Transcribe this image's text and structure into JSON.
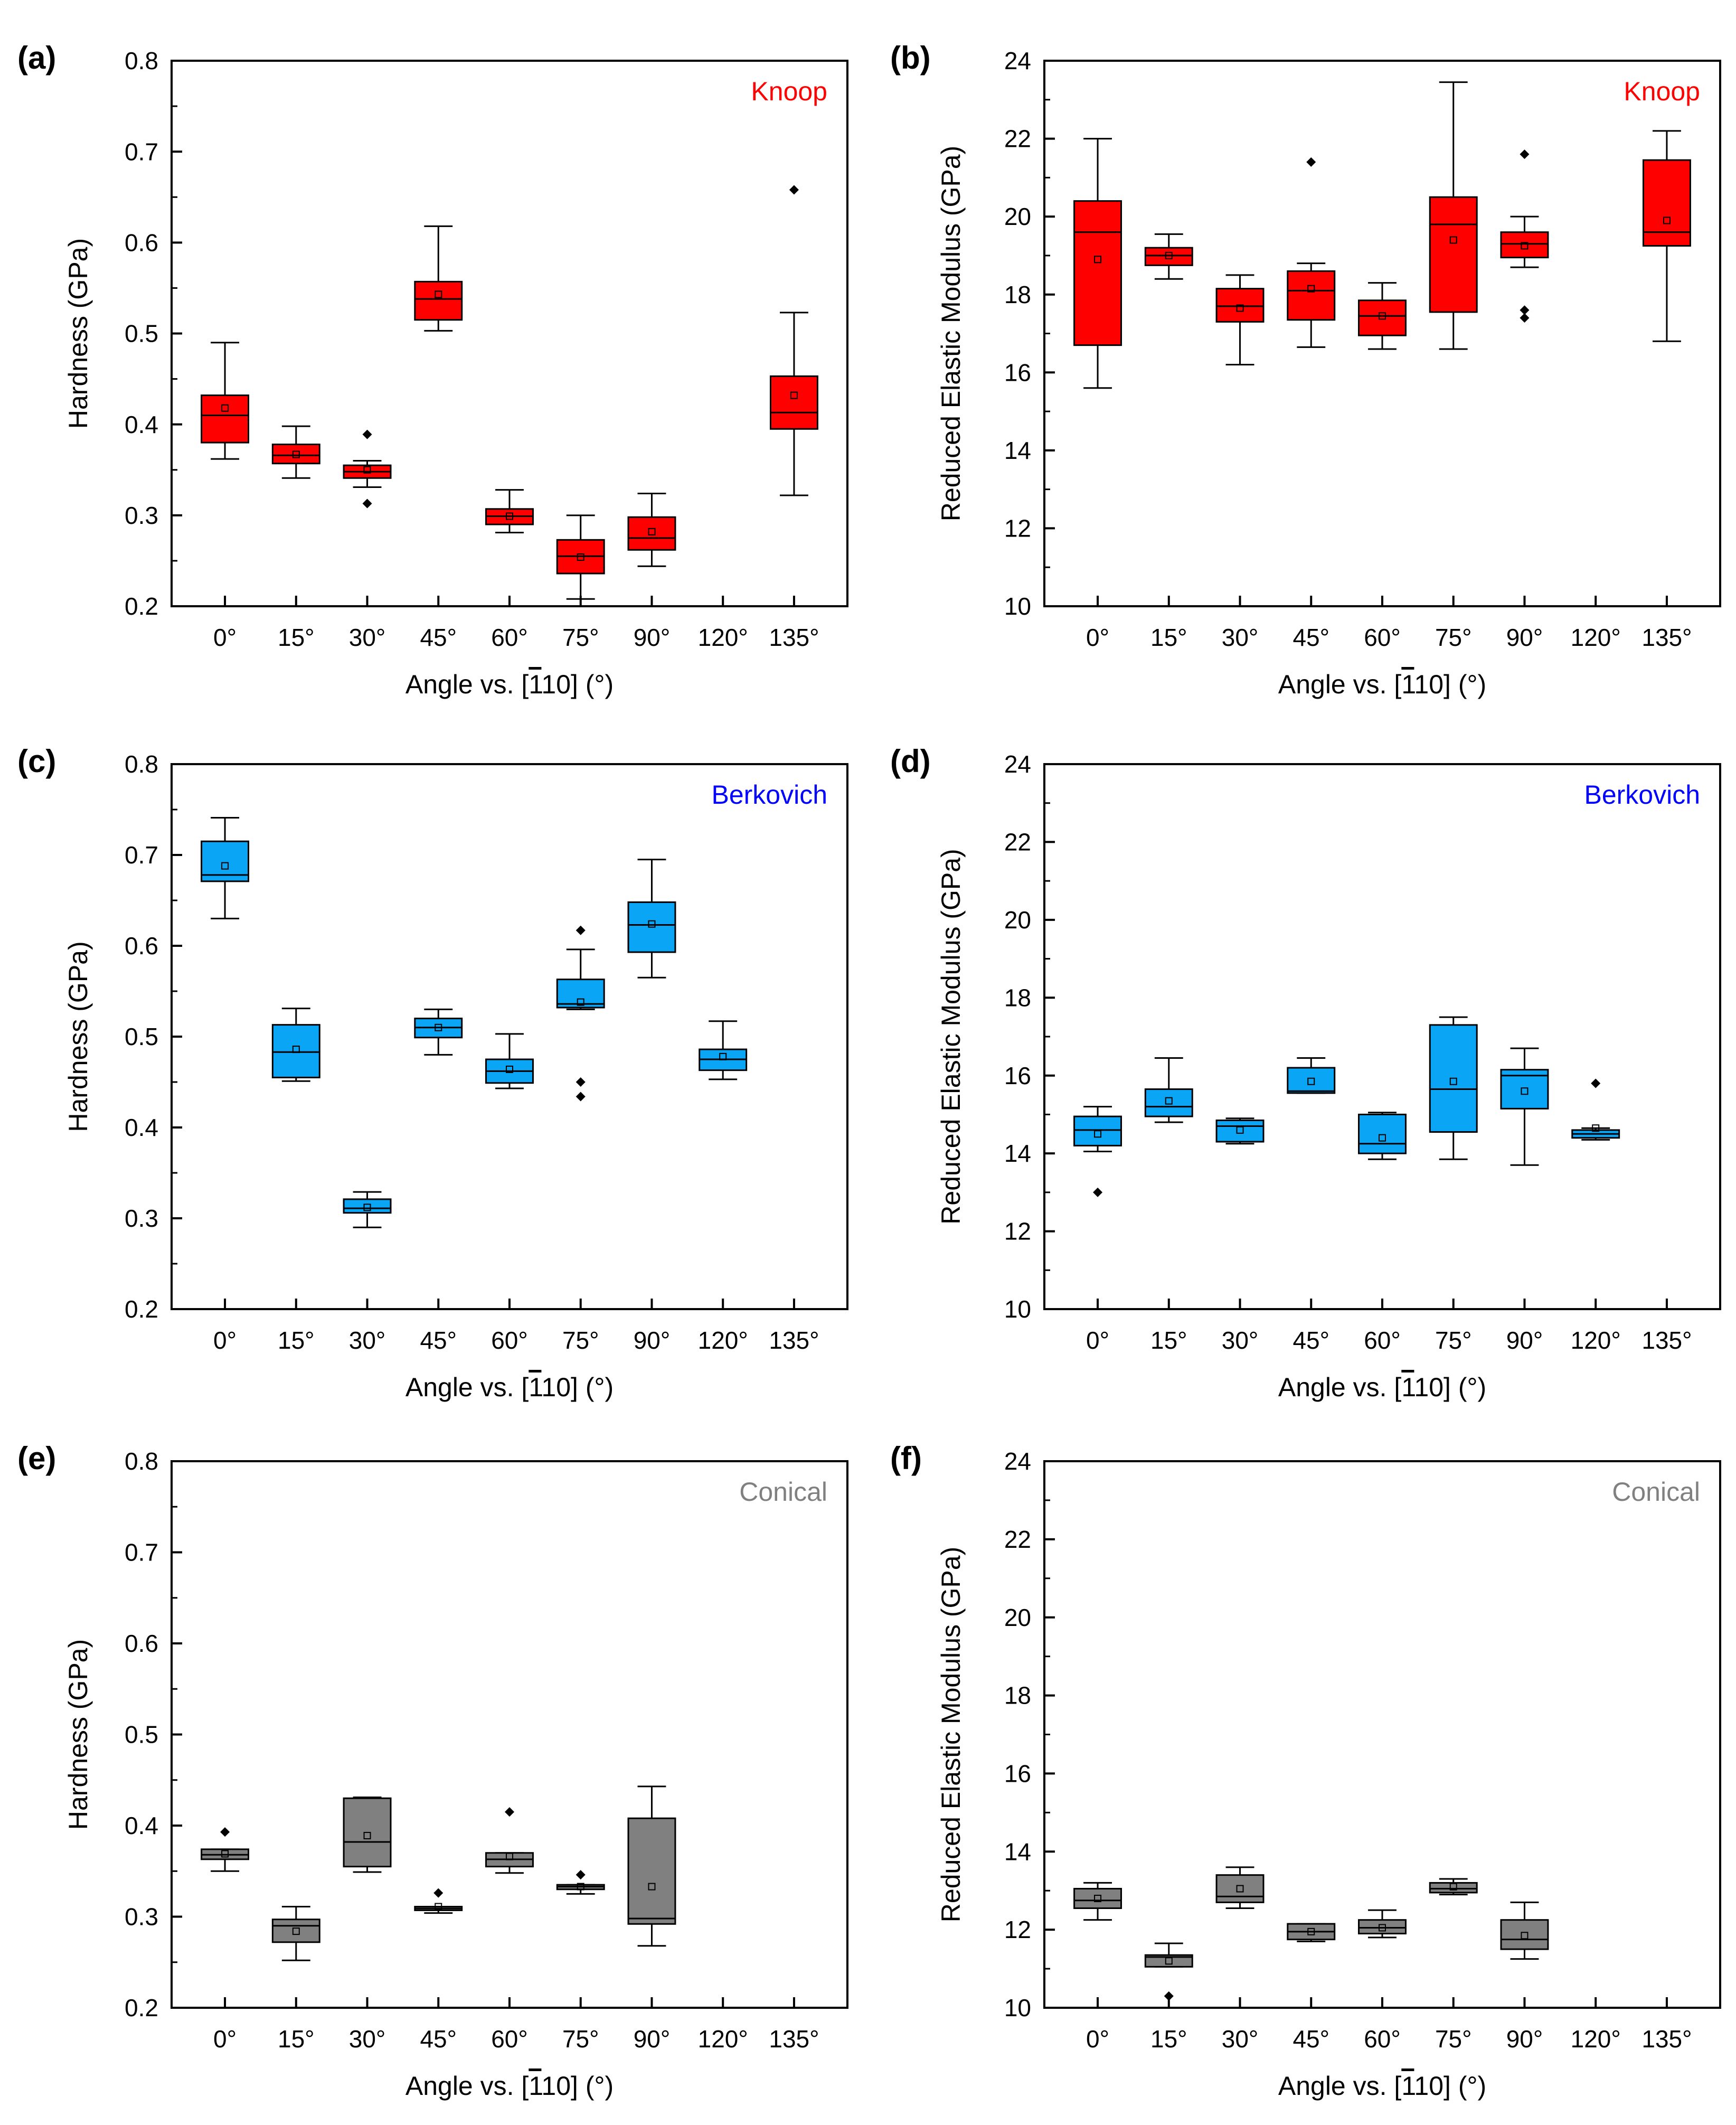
{
  "styles": {
    "Knoop": {
      "fill": "#ff0000",
      "label_color": "#ff0000"
    },
    "Berkovich": {
      "fill": "#0aa5f5",
      "label_color": "#0000ff"
    },
    "Conical": {
      "fill": "#808080",
      "label_color": "#808080"
    }
  },
  "chart_data": [
    {
      "panel": "(a)",
      "type": "box",
      "indenter": "Knoop",
      "title": "",
      "ylabel": "Hardness (GPa)",
      "xlabel": "Angle vs. [1̅10] (°)",
      "xlabel_parts": {
        "prefix": "Angle vs. [",
        "bar_digit": "1",
        "rest": "10] (°)"
      },
      "ylim": [
        0.2,
        0.8
      ],
      "yticks": [
        0.2,
        0.3,
        0.4,
        0.5,
        0.6,
        0.7,
        0.8
      ],
      "categories": [
        "0°",
        "15°",
        "30°",
        "45°",
        "60°",
        "75°",
        "90°",
        "120°",
        "135°"
      ],
      "boxes": [
        {
          "cat": "0°",
          "whisker_low": 0.362,
          "q1": 0.38,
          "median": 0.41,
          "q3": 0.432,
          "whisker_high": 0.49,
          "mean": 0.418,
          "outliers": []
        },
        {
          "cat": "15°",
          "whisker_low": 0.341,
          "q1": 0.357,
          "median": 0.366,
          "q3": 0.378,
          "whisker_high": 0.398,
          "mean": 0.367,
          "outliers": []
        },
        {
          "cat": "30°",
          "whisker_low": 0.331,
          "q1": 0.341,
          "median": 0.348,
          "q3": 0.355,
          "whisker_high": 0.36,
          "mean": 0.35,
          "outliers": [
            0.389,
            0.313
          ]
        },
        {
          "cat": "45°",
          "whisker_low": 0.503,
          "q1": 0.515,
          "median": 0.538,
          "q3": 0.557,
          "whisker_high": 0.618,
          "mean": 0.543,
          "outliers": []
        },
        {
          "cat": "60°",
          "whisker_low": 0.281,
          "q1": 0.29,
          "median": 0.299,
          "q3": 0.307,
          "whisker_high": 0.328,
          "mean": 0.299,
          "outliers": []
        },
        {
          "cat": "75°",
          "whisker_low": 0.208,
          "q1": 0.236,
          "median": 0.255,
          "q3": 0.273,
          "whisker_high": 0.3,
          "mean": 0.254,
          "outliers": []
        },
        {
          "cat": "90°",
          "whisker_low": 0.244,
          "q1": 0.262,
          "median": 0.275,
          "q3": 0.298,
          "whisker_high": 0.324,
          "mean": 0.282,
          "outliers": []
        },
        {
          "cat": "135°",
          "whisker_low": 0.322,
          "q1": 0.395,
          "median": 0.413,
          "q3": 0.453,
          "whisker_high": 0.523,
          "mean": 0.432,
          "outliers": [
            0.658
          ]
        }
      ]
    },
    {
      "panel": "(b)",
      "type": "box",
      "indenter": "Knoop",
      "title": "",
      "ylabel": "Reduced Elastic Modulus (GPa)",
      "xlabel": "Angle vs. [1̅10] (°)",
      "xlabel_parts": {
        "prefix": "Angle vs. [",
        "bar_digit": "1",
        "rest": "10] (°)"
      },
      "ylim": [
        10,
        24
      ],
      "yticks": [
        10,
        12,
        14,
        16,
        18,
        20,
        22,
        24
      ],
      "categories": [
        "0°",
        "15°",
        "30°",
        "45°",
        "60°",
        "75°",
        "90°",
        "120°",
        "135°"
      ],
      "boxes": [
        {
          "cat": "0°",
          "whisker_low": 15.6,
          "q1": 16.7,
          "median": 19.6,
          "q3": 20.4,
          "whisker_high": 22.0,
          "mean": 18.9,
          "outliers": []
        },
        {
          "cat": "15°",
          "whisker_low": 18.4,
          "q1": 18.75,
          "median": 19.0,
          "q3": 19.2,
          "whisker_high": 19.55,
          "mean": 19.0,
          "outliers": []
        },
        {
          "cat": "30°",
          "whisker_low": 16.2,
          "q1": 17.3,
          "median": 17.7,
          "q3": 18.15,
          "whisker_high": 18.5,
          "mean": 17.65,
          "outliers": []
        },
        {
          "cat": "45°",
          "whisker_low": 16.65,
          "q1": 17.35,
          "median": 18.1,
          "q3": 18.6,
          "whisker_high": 18.8,
          "mean": 18.15,
          "outliers": [
            21.4
          ]
        },
        {
          "cat": "60°",
          "whisker_low": 16.6,
          "q1": 16.95,
          "median": 17.45,
          "q3": 17.85,
          "whisker_high": 18.3,
          "mean": 17.45,
          "outliers": []
        },
        {
          "cat": "75°",
          "whisker_low": 16.6,
          "q1": 17.55,
          "median": 19.8,
          "q3": 20.5,
          "whisker_high": 23.45,
          "mean": 19.4,
          "outliers": []
        },
        {
          "cat": "90°",
          "whisker_low": 18.7,
          "q1": 18.95,
          "median": 19.3,
          "q3": 19.6,
          "whisker_high": 20.0,
          "mean": 19.25,
          "outliers": [
            21.6,
            17.6,
            17.4
          ]
        },
        {
          "cat": "135°",
          "whisker_low": 16.8,
          "q1": 19.25,
          "median": 19.6,
          "q3": 21.45,
          "whisker_high": 22.2,
          "mean": 19.9,
          "outliers": []
        }
      ]
    },
    {
      "panel": "(c)",
      "type": "box",
      "indenter": "Berkovich",
      "title": "",
      "ylabel": "Hardness (GPa)",
      "xlabel": "Angle vs. [1̅10] (°)",
      "xlabel_parts": {
        "prefix": "Angle vs. [",
        "bar_digit": "1",
        "rest": "10] (°)"
      },
      "ylim": [
        0.2,
        0.8
      ],
      "yticks": [
        0.2,
        0.3,
        0.4,
        0.5,
        0.6,
        0.7,
        0.8
      ],
      "categories": [
        "0°",
        "15°",
        "30°",
        "45°",
        "60°",
        "75°",
        "90°",
        "120°",
        "135°"
      ],
      "boxes": [
        {
          "cat": "0°",
          "whisker_low": 0.63,
          "q1": 0.671,
          "median": 0.678,
          "q3": 0.715,
          "whisker_high": 0.741,
          "mean": 0.688,
          "outliers": []
        },
        {
          "cat": "15°",
          "whisker_low": 0.451,
          "q1": 0.455,
          "median": 0.483,
          "q3": 0.513,
          "whisker_high": 0.531,
          "mean": 0.486,
          "outliers": []
        },
        {
          "cat": "30°",
          "whisker_low": 0.29,
          "q1": 0.306,
          "median": 0.311,
          "q3": 0.321,
          "whisker_high": 0.329,
          "mean": 0.312,
          "outliers": []
        },
        {
          "cat": "45°",
          "whisker_low": 0.48,
          "q1": 0.499,
          "median": 0.51,
          "q3": 0.52,
          "whisker_high": 0.53,
          "mean": 0.51,
          "outliers": []
        },
        {
          "cat": "60°",
          "whisker_low": 0.443,
          "q1": 0.449,
          "median": 0.462,
          "q3": 0.475,
          "whisker_high": 0.503,
          "mean": 0.464,
          "outliers": []
        },
        {
          "cat": "75°",
          "whisker_low": 0.53,
          "q1": 0.532,
          "median": 0.536,
          "q3": 0.563,
          "whisker_high": 0.596,
          "mean": 0.538,
          "outliers": [
            0.617,
            0.45,
            0.434
          ]
        },
        {
          "cat": "90°",
          "whisker_low": 0.565,
          "q1": 0.593,
          "median": 0.623,
          "q3": 0.648,
          "whisker_high": 0.695,
          "mean": 0.624,
          "outliers": []
        },
        {
          "cat": "120°",
          "whisker_low": 0.453,
          "q1": 0.463,
          "median": 0.475,
          "q3": 0.486,
          "whisker_high": 0.517,
          "mean": 0.478,
          "outliers": []
        }
      ]
    },
    {
      "panel": "(d)",
      "type": "box",
      "indenter": "Berkovich",
      "title": "",
      "ylabel": "Reduced Elastic Modulus (GPa)",
      "xlabel": "Angle vs. [1̅10] (°)",
      "xlabel_parts": {
        "prefix": "Angle vs. [",
        "bar_digit": "1",
        "rest": "10] (°)"
      },
      "ylim": [
        10,
        24
      ],
      "yticks": [
        10,
        12,
        14,
        16,
        18,
        20,
        22,
        24
      ],
      "categories": [
        "0°",
        "15°",
        "30°",
        "45°",
        "60°",
        "75°",
        "90°",
        "120°",
        "135°"
      ],
      "boxes": [
        {
          "cat": "0°",
          "whisker_low": 14.05,
          "q1": 14.2,
          "median": 14.6,
          "q3": 14.95,
          "whisker_high": 15.2,
          "mean": 14.5,
          "outliers": [
            13.0
          ]
        },
        {
          "cat": "15°",
          "whisker_low": 14.8,
          "q1": 14.95,
          "median": 15.2,
          "q3": 15.65,
          "whisker_high": 16.45,
          "mean": 15.35,
          "outliers": []
        },
        {
          "cat": "30°",
          "whisker_low": 14.25,
          "q1": 14.3,
          "median": 14.7,
          "q3": 14.85,
          "whisker_high": 14.9,
          "mean": 14.6,
          "outliers": []
        },
        {
          "cat": "45°",
          "whisker_low": 15.55,
          "q1": 15.55,
          "median": 15.6,
          "q3": 16.2,
          "whisker_high": 16.45,
          "mean": 15.85,
          "outliers": []
        },
        {
          "cat": "60°",
          "whisker_low": 13.85,
          "q1": 14.0,
          "median": 14.25,
          "q3": 15.0,
          "whisker_high": 15.05,
          "mean": 14.4,
          "outliers": []
        },
        {
          "cat": "75°",
          "whisker_low": 13.85,
          "q1": 14.55,
          "median": 15.65,
          "q3": 17.3,
          "whisker_high": 17.5,
          "mean": 15.85,
          "outliers": []
        },
        {
          "cat": "90°",
          "whisker_low": 13.7,
          "q1": 15.15,
          "median": 16.0,
          "q3": 16.15,
          "whisker_high": 16.7,
          "mean": 15.6,
          "outliers": []
        },
        {
          "cat": "120°",
          "whisker_low": 14.35,
          "q1": 14.4,
          "median": 14.5,
          "q3": 14.6,
          "whisker_high": 14.65,
          "mean": 14.65,
          "outliers": [
            15.8
          ]
        }
      ]
    },
    {
      "panel": "(e)",
      "type": "box",
      "indenter": "Conical",
      "title": "",
      "ylabel": "Hardness (GPa)",
      "xlabel": "Angle vs. [1̅10] (°)",
      "xlabel_parts": {
        "prefix": "Angle vs. [",
        "bar_digit": "1",
        "rest": "10] (°)"
      },
      "ylim": [
        0.2,
        0.8
      ],
      "yticks": [
        0.2,
        0.3,
        0.4,
        0.5,
        0.6,
        0.7,
        0.8
      ],
      "categories": [
        "0°",
        "15°",
        "30°",
        "45°",
        "60°",
        "75°",
        "90°",
        "120°",
        "135°"
      ],
      "boxes": [
        {
          "cat": "0°",
          "whisker_low": 0.35,
          "q1": 0.363,
          "median": 0.368,
          "q3": 0.374,
          "whisker_high": 0.374,
          "mean": 0.369,
          "outliers": [
            0.393
          ]
        },
        {
          "cat": "15°",
          "whisker_low": 0.252,
          "q1": 0.272,
          "median": 0.29,
          "q3": 0.297,
          "whisker_high": 0.311,
          "mean": 0.284,
          "outliers": []
        },
        {
          "cat": "30°",
          "whisker_low": 0.349,
          "q1": 0.355,
          "median": 0.382,
          "q3": 0.43,
          "whisker_high": 0.431,
          "mean": 0.389,
          "outliers": []
        },
        {
          "cat": "45°",
          "whisker_low": 0.304,
          "q1": 0.307,
          "median": 0.309,
          "q3": 0.311,
          "whisker_high": 0.311,
          "mean": 0.311,
          "outliers": [
            0.326
          ]
        },
        {
          "cat": "60°",
          "whisker_low": 0.348,
          "q1": 0.355,
          "median": 0.363,
          "q3": 0.37,
          "whisker_high": 0.37,
          "mean": 0.366,
          "outliers": [
            0.415
          ]
        },
        {
          "cat": "75°",
          "whisker_low": 0.325,
          "q1": 0.33,
          "median": 0.333,
          "q3": 0.335,
          "whisker_high": 0.335,
          "mean": 0.333,
          "outliers": [
            0.346
          ]
        },
        {
          "cat": "90°",
          "whisker_low": 0.268,
          "q1": 0.292,
          "median": 0.298,
          "q3": 0.408,
          "whisker_high": 0.443,
          "mean": 0.333,
          "outliers": []
        }
      ]
    },
    {
      "panel": "(f)",
      "type": "box",
      "indenter": "Conical",
      "title": "",
      "ylabel": "Reduced Elastic Modulus (GPa)",
      "xlabel": "Angle vs. [1̅10] (°)",
      "xlabel_parts": {
        "prefix": "Angle vs. [",
        "bar_digit": "1",
        "rest": "10] (°)"
      },
      "ylim": [
        10,
        24
      ],
      "yticks": [
        10,
        12,
        14,
        16,
        18,
        20,
        22,
        24
      ],
      "categories": [
        "0°",
        "15°",
        "30°",
        "45°",
        "60°",
        "75°",
        "90°",
        "120°",
        "135°"
      ],
      "boxes": [
        {
          "cat": "0°",
          "whisker_low": 12.25,
          "q1": 12.55,
          "median": 12.75,
          "q3": 13.05,
          "whisker_high": 13.2,
          "mean": 12.8,
          "outliers": []
        },
        {
          "cat": "15°",
          "whisker_low": 11.05,
          "q1": 11.05,
          "median": 11.3,
          "q3": 11.35,
          "whisker_high": 11.65,
          "mean": 11.2,
          "outliers": [
            10.3
          ]
        },
        {
          "cat": "30°",
          "whisker_low": 12.55,
          "q1": 12.7,
          "median": 12.85,
          "q3": 13.4,
          "whisker_high": 13.6,
          "mean": 13.05,
          "outliers": []
        },
        {
          "cat": "45°",
          "whisker_low": 11.7,
          "q1": 11.75,
          "median": 11.95,
          "q3": 12.15,
          "whisker_high": 12.15,
          "mean": 11.95,
          "outliers": []
        },
        {
          "cat": "60°",
          "whisker_low": 11.8,
          "q1": 11.9,
          "median": 12.05,
          "q3": 12.25,
          "whisker_high": 12.5,
          "mean": 12.05,
          "outliers": []
        },
        {
          "cat": "75°",
          "whisker_low": 12.9,
          "q1": 12.95,
          "median": 13.05,
          "q3": 13.2,
          "whisker_high": 13.3,
          "mean": 13.1,
          "outliers": []
        },
        {
          "cat": "90°",
          "whisker_low": 11.25,
          "q1": 11.5,
          "median": 11.75,
          "q3": 12.25,
          "whisker_high": 12.7,
          "mean": 11.85,
          "outliers": []
        }
      ]
    }
  ]
}
